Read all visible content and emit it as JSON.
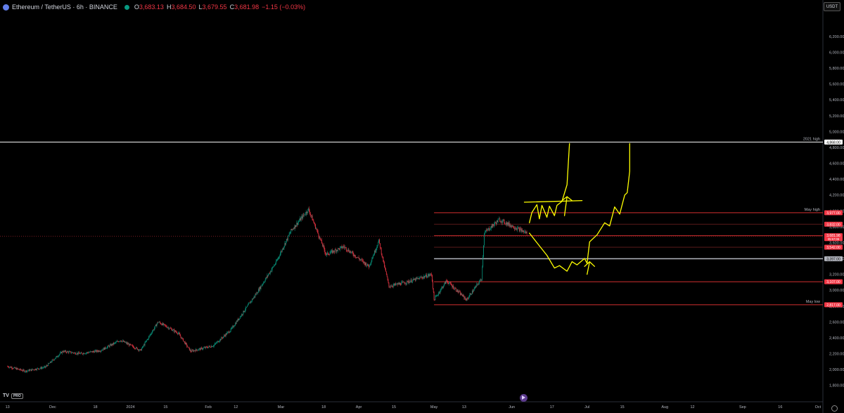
{
  "header": {
    "symbol": "Ethereum / TetherUS · 6h · BINANCE",
    "open_label": "O",
    "open": "3,683.13",
    "high_label": "H",
    "high": "3,684.50",
    "low_label": "L",
    "low": "3,679.55",
    "close_label": "C",
    "close": "3,681.98",
    "change": "−1.15 (−0.03%)"
  },
  "currency": "USDT",
  "logo_text": "TV",
  "logo_badge": "PRO",
  "chart_data": {
    "type": "candlestick",
    "ylim": [
      1700,
      6500
    ],
    "y_ticks": [
      1800,
      2000,
      2200,
      2400,
      2600,
      2800,
      3000,
      3200,
      3400,
      3600,
      3800,
      4000,
      4200,
      4400,
      4600,
      4800,
      5000,
      5200,
      5400,
      5600,
      5800,
      6000,
      6200
    ],
    "y_tick_labels": [
      "1,800.00",
      "2,000.00",
      "2,200.00",
      "2,400.00",
      "2,600.00",
      "2,800.00",
      "3,000.00",
      "3,200.00",
      "3,400.00",
      "3,600.00",
      "3,800.00",
      "4,000.00",
      "4,200.00",
      "4,400.00",
      "4,600.00",
      "4,800.00",
      "5,000.00",
      "5,200.00",
      "5,400.00",
      "5,600.00",
      "5,800.00",
      "6,000.00",
      "6,200.00"
    ],
    "x_ticks": [
      {
        "label": "13",
        "date": "2023-11-13"
      },
      {
        "label": "Dec",
        "date": "2023-12-01"
      },
      {
        "label": "18",
        "date": "2023-12-18"
      },
      {
        "label": "2024",
        "date": "2024-01-01"
      },
      {
        "label": "15",
        "date": "2024-01-15"
      },
      {
        "label": "Feb",
        "date": "2024-02-01"
      },
      {
        "label": "12",
        "date": "2024-02-12"
      },
      {
        "label": "Mar",
        "date": "2024-03-01"
      },
      {
        "label": "18",
        "date": "2024-03-18"
      },
      {
        "label": "Apr",
        "date": "2024-04-01"
      },
      {
        "label": "15",
        "date": "2024-04-15"
      },
      {
        "label": "May",
        "date": "2024-05-01"
      },
      {
        "label": "13",
        "date": "2024-05-13"
      },
      {
        "label": "Jun",
        "date": "2024-06-01"
      },
      {
        "label": "17",
        "date": "2024-06-17"
      },
      {
        "label": "Jul",
        "date": "2024-07-01"
      },
      {
        "label": "15",
        "date": "2024-07-15"
      },
      {
        "label": "Aug",
        "date": "2024-08-01"
      },
      {
        "label": "12",
        "date": "2024-08-12"
      },
      {
        "label": "Sep",
        "date": "2024-09-01"
      },
      {
        "label": "16",
        "date": "2024-09-16"
      },
      {
        "label": "Oct",
        "date": "2024-10-01"
      }
    ],
    "price_path": [
      [
        "2023-11-13",
        2040
      ],
      [
        "2023-11-20",
        1980
      ],
      [
        "2023-11-28",
        2030
      ],
      [
        "2023-12-05",
        2230
      ],
      [
        "2023-12-12",
        2200
      ],
      [
        "2023-12-20",
        2240
      ],
      [
        "2023-12-28",
        2370
      ],
      [
        "2024-01-05",
        2240
      ],
      [
        "2024-01-12",
        2600
      ],
      [
        "2024-01-20",
        2460
      ],
      [
        "2024-01-25",
        2230
      ],
      [
        "2024-02-03",
        2300
      ],
      [
        "2024-02-10",
        2500
      ],
      [
        "2024-02-20",
        2950
      ],
      [
        "2024-02-28",
        3350
      ],
      [
        "2024-03-05",
        3750
      ],
      [
        "2024-03-12",
        4020
      ],
      [
        "2024-03-19",
        3450
      ],
      [
        "2024-03-26",
        3550
      ],
      [
        "2024-04-05",
        3300
      ],
      [
        "2024-04-09",
        3620
      ],
      [
        "2024-04-13",
        3050
      ],
      [
        "2024-04-20",
        3100
      ],
      [
        "2024-04-30",
        3200
      ],
      [
        "2024-05-01",
        2880
      ],
      [
        "2024-05-06",
        3120
      ],
      [
        "2024-05-14",
        2880
      ],
      [
        "2024-05-20",
        3150
      ],
      [
        "2024-05-21",
        3720
      ],
      [
        "2024-05-27",
        3890
      ],
      [
        "2024-06-03",
        3780
      ],
      [
        "2024-06-07",
        3720
      ]
    ],
    "levels": [
      {
        "value": 4868,
        "label": "4,868.00",
        "annotation": "2021 high",
        "color": "#ffffff",
        "from": "2023-11-01",
        "box_color": "#ffffff",
        "text_color": "#000000"
      },
      {
        "value": 3977,
        "label": "3,977.00",
        "annotation": "May high",
        "color": "#d32f2f",
        "from": "2024-05-01",
        "box_color": "#f23645",
        "text_color": "#ffffff"
      },
      {
        "value": 3832,
        "label": "3,832.00",
        "annotation": "",
        "color": "#5a1a1a",
        "from": "2024-05-01",
        "box_color": "#f23645",
        "text_color": "#ffffff"
      },
      {
        "value": 3687,
        "label": "3,687.00",
        "annotation": "",
        "color": "#d32f2f",
        "from": "2024-05-01",
        "box_color": "#f23645",
        "text_color": "#ffffff"
      },
      {
        "value": 3542,
        "label": "3,542.00",
        "annotation": "",
        "color": "#5a1a1a",
        "from": "2024-05-01",
        "box_color": "#f23645",
        "text_color": "#ffffff"
      },
      {
        "value": 3397,
        "label": "3,397.00",
        "annotation": "",
        "color": "#b2b5be",
        "from": "2024-05-01",
        "box_color": "#b2b5be",
        "text_color": "#000000"
      },
      {
        "value": 3107,
        "label": "3,107.00",
        "annotation": "",
        "color": "#d32f2f",
        "from": "2024-05-01",
        "box_color": "#f23645",
        "text_color": "#ffffff"
      },
      {
        "value": 2817,
        "label": "2,817.00",
        "annotation": "May low",
        "color": "#d32f2f",
        "from": "2024-05-01",
        "box_color": "#f23645",
        "text_color": "#ffffff"
      }
    ],
    "current_price": {
      "value": 3681.98,
      "label": "3,681.98",
      "countdown": "05:57:09",
      "color": "#f23645"
    },
    "drawings": [
      {
        "color": "#ffff00",
        "points": [
          [
            "2024-06-08",
            3720
          ],
          [
            "2024-06-12",
            3560
          ],
          [
            "2024-06-15",
            3440
          ],
          [
            "2024-06-18",
            3280
          ],
          [
            "2024-06-20",
            3310
          ],
          [
            "2024-06-23",
            3240
          ],
          [
            "2024-06-25",
            3360
          ],
          [
            "2024-06-27",
            3320
          ],
          [
            "2024-06-30",
            3400
          ],
          [
            "2024-07-01",
            3340
          ],
          [
            "2024-07-02",
            3610
          ],
          [
            "2024-07-05",
            3700
          ],
          [
            "2024-07-08",
            3850
          ],
          [
            "2024-07-10",
            3810
          ],
          [
            "2024-07-12",
            4050
          ],
          [
            "2024-07-14",
            3960
          ],
          [
            "2024-07-16",
            4200
          ],
          [
            "2024-07-17",
            4230
          ],
          [
            "2024-07-18",
            4500
          ],
          [
            "2024-07-18",
            4850
          ]
        ]
      },
      {
        "color": "#ffff00",
        "points": [
          [
            "2024-06-08",
            3850
          ],
          [
            "2024-06-09",
            3980
          ],
          [
            "2024-06-11",
            4080
          ],
          [
            "2024-06-12",
            3900
          ],
          [
            "2024-06-13",
            4070
          ],
          [
            "2024-06-15",
            3920
          ],
          [
            "2024-06-16",
            4060
          ],
          [
            "2024-06-18",
            3940
          ],
          [
            "2024-06-19",
            4070
          ],
          [
            "2024-06-21",
            4120
          ],
          [
            "2024-06-23",
            4330
          ],
          [
            "2024-06-24",
            4850
          ]
        ]
      },
      {
        "color": "#ffff00",
        "points": [
          [
            "2024-06-06",
            4110
          ],
          [
            "2024-06-29",
            4130
          ]
        ]
      },
      {
        "color": "#ffff00",
        "points": [
          [
            "2024-06-22",
            3940
          ],
          [
            "2024-06-23",
            4180
          ]
        ]
      },
      {
        "color": "#ffff00",
        "points": [
          [
            "2024-06-21",
            4130
          ],
          [
            "2024-06-23",
            4180
          ],
          [
            "2024-06-25",
            4130
          ]
        ]
      },
      {
        "color": "#ffff00",
        "points": [
          [
            "2024-07-01",
            3200
          ],
          [
            "2024-07-02",
            3360
          ]
        ]
      },
      {
        "color": "#ffff00",
        "points": [
          [
            "2024-06-30",
            3300
          ],
          [
            "2024-07-02",
            3360
          ],
          [
            "2024-07-04",
            3300
          ]
        ]
      }
    ]
  }
}
